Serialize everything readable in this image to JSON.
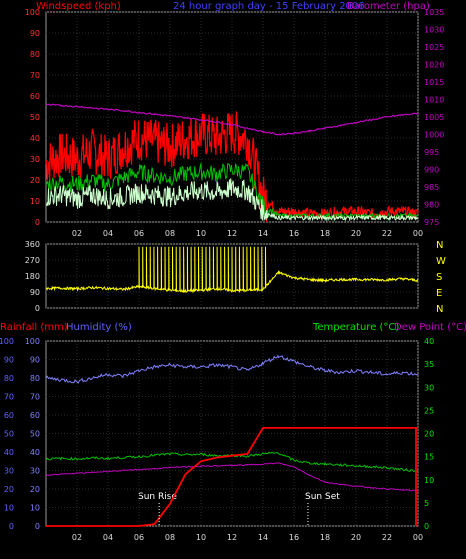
{
  "header": {
    "windspeed_label": "Windspeed (kph)",
    "graph_title": "24 hour graph day - 15 February 2006",
    "barometer_label": "Barometer (hpa)"
  },
  "colors": {
    "background": "#000000",
    "grid": "#2a2a2a",
    "axis_frame": "#9a9a9a",
    "gust": "#ff0000",
    "wind_avg": "#00c000",
    "wind_light": "#ccffcc",
    "barometer": "#c000c0",
    "direction": "#ffff00",
    "rainfall": "#ff0000",
    "humidity": "#8080ff",
    "temperature": "#00c000",
    "dewpoint": "#c000c0",
    "label_red": "#ff0000",
    "label_blue": "#6060ff",
    "label_magenta": "#c000c0",
    "label_green": "#00e000",
    "label_yellow": "#ffff00",
    "tick_text": "#dddddd"
  },
  "chart_data": [
    {
      "type": "line",
      "title": "24 hour graph day - 15 February 2006",
      "ylabel": "Windspeed (kph)",
      "ylim": [
        0,
        100
      ],
      "yticks": [
        0,
        10,
        20,
        30,
        40,
        50,
        60,
        70,
        80,
        90,
        100
      ],
      "y2label": "Barometer (hpa)",
      "y2lim": [
        975,
        1035
      ],
      "y2ticks": [
        975,
        980,
        985,
        990,
        995,
        1000,
        1005,
        1010,
        1015,
        1020,
        1025,
        1030,
        1035
      ],
      "xlim": [
        0,
        24
      ],
      "xticks": [
        "02",
        "04",
        "06",
        "08",
        "10",
        "12",
        "14",
        "16",
        "18",
        "20",
        "22",
        "00"
      ],
      "x": [
        0,
        1,
        2,
        3,
        4,
        5,
        6,
        7,
        8,
        9,
        10,
        11,
        12,
        13,
        14,
        15,
        16,
        17,
        18,
        19,
        20,
        21,
        22,
        23,
        24
      ],
      "series": [
        {
          "key": "gust",
          "values": [
            28,
            32,
            30,
            34,
            30,
            36,
            40,
            38,
            36,
            40,
            42,
            40,
            43,
            40,
            12,
            5,
            5,
            4,
            4,
            5,
            5,
            4,
            5,
            5,
            4
          ]
        },
        {
          "key": "avg",
          "values": [
            18,
            19,
            18,
            20,
            18,
            21,
            24,
            22,
            21,
            23,
            24,
            23,
            25,
            24,
            8,
            3,
            3,
            3,
            3,
            3,
            3,
            3,
            3,
            3,
            3
          ]
        },
        {
          "key": "light",
          "values": [
            12,
            13,
            11,
            13,
            11,
            12,
            14,
            13,
            12,
            14,
            15,
            14,
            16,
            15,
            5,
            2,
            2,
            2,
            2,
            2,
            2,
            2,
            2,
            2,
            2
          ]
        },
        {
          "key": "barometer",
          "axis": "right",
          "values": [
            1008.5,
            1008.3,
            1008,
            1007.6,
            1007.2,
            1006.8,
            1006.3,
            1005.8,
            1005.3,
            1004.8,
            1004.2,
            1003.6,
            1002.8,
            1001.8,
            1000.8,
            1000,
            1000.4,
            1001,
            1001.8,
            1002.6,
            1003.4,
            1004.2,
            1005,
            1005.6,
            1006
          ]
        }
      ]
    },
    {
      "type": "line",
      "ylim": [
        0,
        360
      ],
      "yticks": [
        0,
        90,
        180,
        270,
        360
      ],
      "y2ticks": [
        "N",
        "W",
        "S",
        "E",
        "N"
      ],
      "xlim": [
        0,
        24
      ],
      "x": [
        0,
        1,
        2,
        3,
        4,
        5,
        6,
        7,
        8,
        9,
        10,
        11,
        12,
        13,
        14,
        15,
        16,
        17,
        18,
        19,
        20,
        21,
        22,
        23,
        24
      ],
      "series": [
        {
          "key": "direction",
          "values": [
            110,
            112,
            108,
            115,
            110,
            105,
            120,
            110,
            100,
            95,
            100,
            108,
            98,
            100,
            105,
            200,
            170,
            160,
            155,
            160,
            160,
            160,
            158,
            165,
            155
          ]
        }
      ]
    },
    {
      "type": "line",
      "xlim": [
        0,
        24
      ],
      "xticks": [
        "02",
        "04",
        "06",
        "08",
        "10",
        "12",
        "14",
        "16",
        "18",
        "20",
        "22",
        "00"
      ],
      "y_left_outer_label": "Rainfall (mm)",
      "y_left_outer_lim": [
        0,
        100
      ],
      "y_left_outer_ticks": [
        0,
        10,
        20,
        30,
        40,
        50,
        60,
        70,
        80,
        90,
        100
      ],
      "y_left_inner_label": "Humidity (%)",
      "y_left_inner_lim": [
        0,
        100
      ],
      "y_left_inner_ticks": [
        0,
        10,
        20,
        30,
        40,
        50,
        60,
        70,
        80,
        90,
        100
      ],
      "y2label": "Temperature (°C)",
      "y2label_b": "Dew Point (°C)",
      "y2lim": [
        0,
        40
      ],
      "y2ticks": [
        0,
        5,
        10,
        15,
        20,
        25,
        30,
        35,
        40
      ],
      "annotations": {
        "sunrise": "Sun Rise",
        "sunset": "Sun Set"
      },
      "x": [
        0,
        1,
        2,
        3,
        4,
        5,
        6,
        7,
        8,
        9,
        10,
        11,
        12,
        13,
        14,
        15,
        16,
        17,
        18,
        19,
        20,
        21,
        22,
        23,
        24
      ],
      "series": [
        {
          "key": "rainfall",
          "axis": "left_outer",
          "values": [
            0,
            0,
            0,
            0,
            0,
            0,
            0,
            1,
            12,
            28,
            35,
            37,
            38,
            39,
            53,
            53,
            53,
            53,
            53,
            53,
            53,
            53,
            53,
            53,
            53
          ]
        },
        {
          "key": "humidity",
          "axis": "left_inner",
          "values": [
            80,
            79,
            78,
            80,
            82,
            81,
            84,
            86,
            87,
            86,
            86,
            87,
            86,
            84,
            88,
            92,
            89,
            86,
            84,
            83,
            84,
            83,
            82,
            83,
            82
          ]
        },
        {
          "key": "temperature",
          "axis": "right",
          "values": [
            14.5,
            14.6,
            14.5,
            14.7,
            14.6,
            14.8,
            15,
            15.3,
            15.6,
            15.4,
            15.5,
            15.2,
            15.3,
            15.1,
            15.6,
            15.8,
            14.2,
            13.6,
            13.4,
            13.2,
            13,
            12.8,
            12.6,
            12.2,
            11.9
          ]
        },
        {
          "key": "dewpoint",
          "axis": "right",
          "values": [
            11,
            11.2,
            11.4,
            11.6,
            11.8,
            12,
            12.2,
            12.4,
            12.6,
            12.8,
            12.9,
            13,
            13.1,
            13.2,
            13.4,
            13.6,
            12.8,
            11,
            9.5,
            9,
            8.6,
            8.3,
            8,
            7.8,
            7.6
          ]
        }
      ]
    }
  ]
}
